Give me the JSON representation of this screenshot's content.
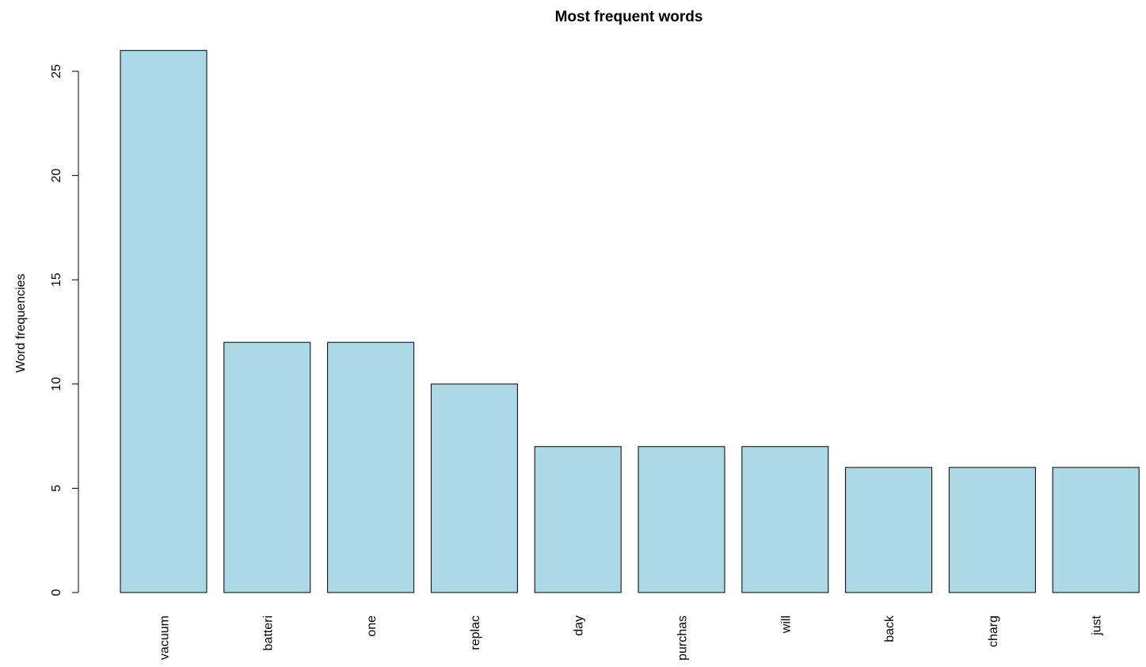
{
  "chart_data": {
    "type": "bar",
    "title": "Most frequent words",
    "xlabel": "",
    "ylabel": "Word frequencies",
    "categories": [
      "vacuum",
      "batteri",
      "one",
      "replac",
      "day",
      "purchas",
      "will",
      "back",
      "charg",
      "just"
    ],
    "values": [
      26,
      12,
      12,
      10,
      7,
      7,
      7,
      6,
      6,
      6
    ],
    "ylim": [
      0,
      25
    ],
    "yticks": [
      0,
      5,
      10,
      15,
      20,
      25
    ],
    "bar_color": "#ADD8E6",
    "bar_border_color": "#000000",
    "grid": false,
    "legend": "none"
  }
}
